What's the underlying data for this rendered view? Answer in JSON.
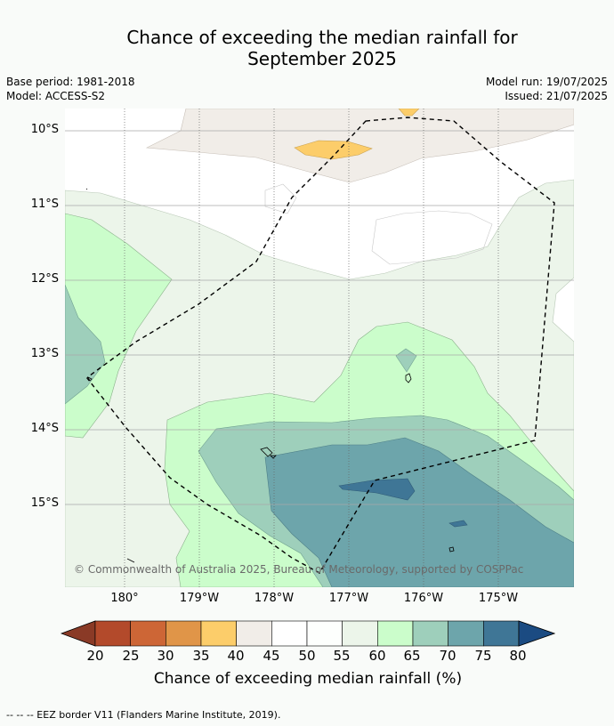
{
  "title": {
    "line1": "Chance of exceeding the median rainfall for",
    "line2": "September 2025"
  },
  "meta": {
    "base_period": "Base period: 1981-2018",
    "model": "Model: ACCESS-S2",
    "model_run": "Model run: 19/07/2025",
    "issued": "Issued: 21/07/2025"
  },
  "axes": {
    "lat_labels": [
      "10°S",
      "11°S",
      "12°S",
      "13°S",
      "14°S",
      "15°S"
    ],
    "lon_labels": [
      "180°",
      "179°W",
      "178°W",
      "177°W",
      "176°W",
      "175°W"
    ]
  },
  "copyright": "© Commonwealth of Australia 2025, Bureau of Meteorology, supported by COSPPac",
  "colorbar": {
    "ticks": [
      "20",
      "25",
      "30",
      "35",
      "40",
      "45",
      "50",
      "55",
      "60",
      "65",
      "70",
      "75",
      "80"
    ],
    "colors": [
      "#8a3a26",
      "#b34a2b",
      "#cd6636",
      "#e09548",
      "#fccd6a",
      "#f1ede8",
      "#ffffff",
      "#fdfffd",
      "#ecf5ea",
      "#cbfdcb",
      "#9ecfbb",
      "#6da5ab",
      "#3f7696",
      "#1b4b82"
    ],
    "label": "Chance of exceeding median rainfall (%)"
  },
  "footer": {
    "eez": "--  --  -- EEZ border V11 (Flanders Marine Institute, 2019)."
  }
}
